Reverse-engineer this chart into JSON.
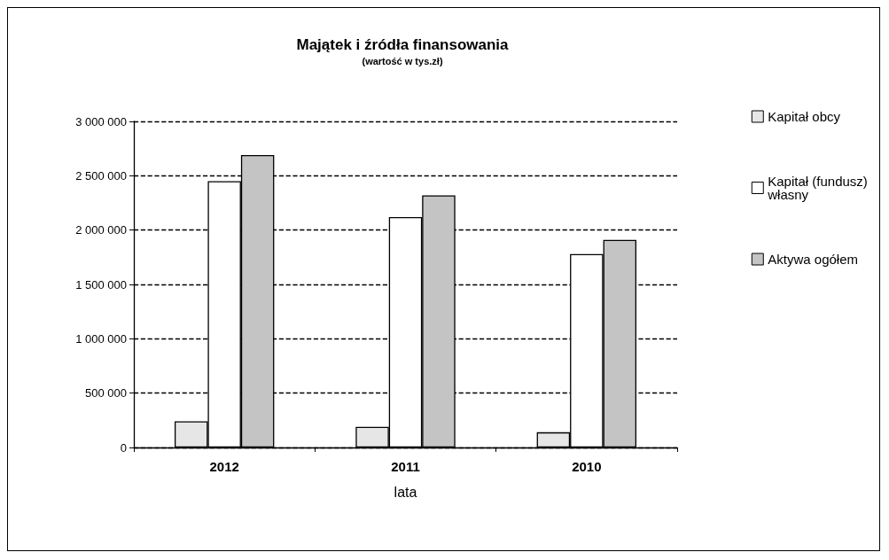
{
  "chart_data": {
    "type": "bar",
    "title": "Majątek i źródła finansowania",
    "subtitle": "(wartość w tys.zł)",
    "xlabel": "lata",
    "categories": [
      "2012",
      "2011",
      "2010"
    ],
    "series": [
      {
        "name": "Kapitał obcy",
        "color": "#e6e6e6",
        "values": [
          240000,
          190000,
          140000
        ]
      },
      {
        "name": "Kapitał (fundusz) własny",
        "color": "#ffffff",
        "values": [
          2450000,
          2120000,
          1780000
        ]
      },
      {
        "name": "Aktywa ogółem",
        "color": "#c4c4c4",
        "values": [
          2690000,
          2320000,
          1910000
        ]
      }
    ],
    "ylim": [
      0,
      3000000
    ],
    "yticks": [
      {
        "value": 0,
        "label": "0"
      },
      {
        "value": 500000,
        "label": "500 000"
      },
      {
        "value": 1000000,
        "label": "1 000 000"
      },
      {
        "value": 1500000,
        "label": "1 500 000"
      },
      {
        "value": 2000000,
        "label": "2 000 000"
      },
      {
        "value": 2500000,
        "label": "2 500 000"
      },
      {
        "value": 3000000,
        "label": "3 000 000"
      }
    ],
    "grid": "y",
    "legend": "right"
  }
}
